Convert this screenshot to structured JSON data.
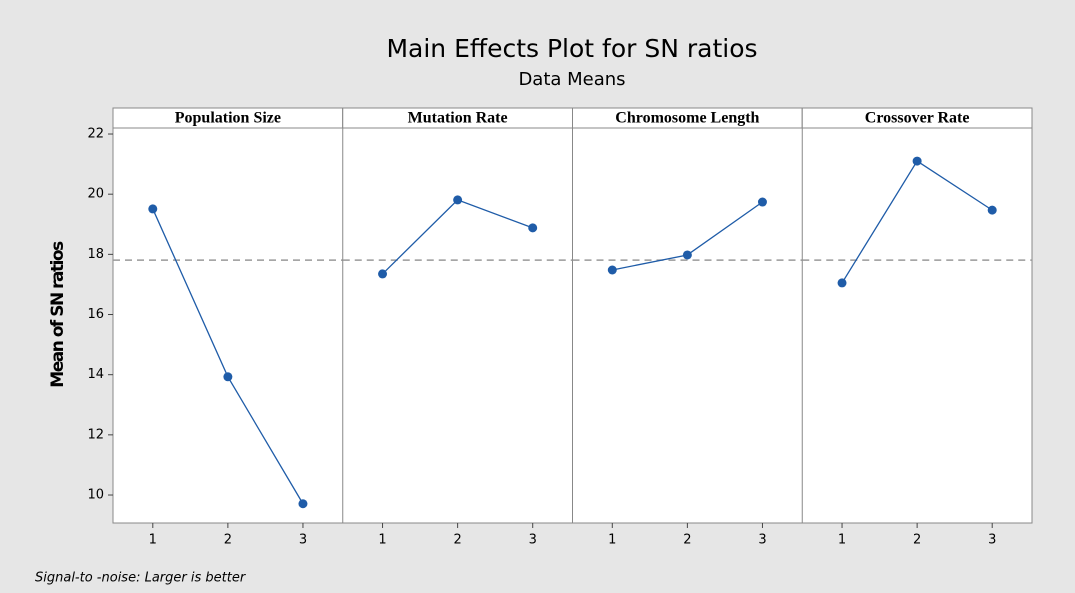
{
  "chart_data": {
    "type": "line",
    "title": "Main Effects Plot for SN ratios",
    "subtitle": "Data Means",
    "ylabel": "Mean of SN ratios",
    "footnote": "Signal-to -noise: Larger is better",
    "color": "#1f5ca8",
    "reference_line": 17.81,
    "reference_color": "#999999",
    "ylim": [
      9.07,
      22.2
    ],
    "yticks": [
      10,
      12,
      14,
      16,
      18,
      20,
      22
    ],
    "xlim": [
      0.47,
      3.53
    ],
    "xticks": [
      1,
      2,
      3
    ],
    "panels": [
      {
        "name": "Population Size",
        "x": [
          1,
          2,
          3
        ],
        "values": [
          19.51,
          13.93,
          9.71
        ]
      },
      {
        "name": "Mutation Rate",
        "x": [
          1,
          2,
          3
        ],
        "values": [
          17.35,
          19.81,
          18.88
        ]
      },
      {
        "name": "Chromosome Length",
        "x": [
          1,
          2,
          3
        ],
        "values": [
          17.48,
          17.98,
          19.74
        ]
      },
      {
        "name": "Crossover Rate",
        "x": [
          1,
          2,
          3
        ],
        "values": [
          17.05,
          21.1,
          19.47
        ]
      }
    ]
  }
}
